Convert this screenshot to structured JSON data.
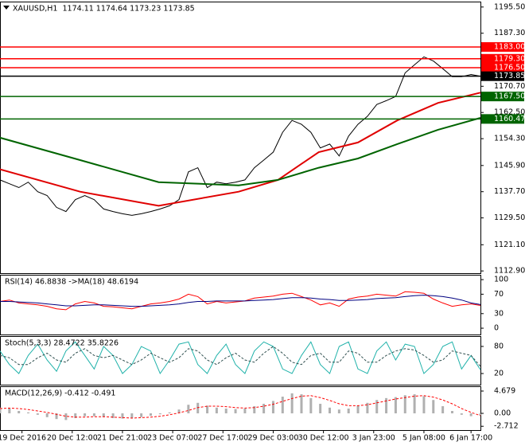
{
  "chart_data": [
    {
      "type": "line",
      "title": "XAUUSD,H1  1174.11 1174.64 1173.23 1173.85",
      "ylim": [
        1112.2,
        1197.2
      ],
      "xlim": [
        0,
        306
      ],
      "yticks": [
        {
          "value": 1195.5,
          "label": "1195.50"
        },
        {
          "value": 1187.3,
          "label": "1187.30"
        },
        {
          "value": 1170.7,
          "label": "1170.70"
        },
        {
          "value": 1162.5,
          "label": "1162.50"
        },
        {
          "value": 1154.3,
          "label": "1154.30"
        },
        {
          "value": 1145.9,
          "label": "1145.90"
        },
        {
          "value": 1137.7,
          "label": "1137.70"
        },
        {
          "value": 1129.5,
          "label": "1129.50"
        },
        {
          "value": 1121.1,
          "label": "1121.10"
        },
        {
          "value": 1112.9,
          "label": "1112.90"
        }
      ],
      "xticks": [
        {
          "value": 14,
          "label": "19 Dec 2016"
        },
        {
          "value": 46,
          "label": "20 Dec 12:00"
        },
        {
          "value": 78,
          "label": "21 Dec 21:00"
        },
        {
          "value": 110,
          "label": "23 Dec 07:00"
        },
        {
          "value": 142,
          "label": "27 Dec 17:00"
        },
        {
          "value": 174,
          "label": "29 Dec 03:00"
        },
        {
          "value": 206,
          "label": "30 Dec 12:00"
        },
        {
          "value": 238,
          "label": "3 Jan 23:00"
        },
        {
          "value": 270,
          "label": "5 Jan 08:00"
        },
        {
          "value": 300,
          "label": "6 Jan 17:00"
        }
      ],
      "levels": [
        {
          "value": 1183.0,
          "label": "1183.00",
          "color": "#ff0000"
        },
        {
          "value": 1179.3,
          "label": "1179.30",
          "color": "#ff0000"
        },
        {
          "value": 1176.5,
          "label": "1176.50",
          "color": "#ff0000"
        },
        {
          "value": 1173.85,
          "label": "1173.85",
          "color": "#000000"
        },
        {
          "value": 1167.5,
          "label": "1167.50",
          "color": "#006400"
        },
        {
          "value": 1160.47,
          "label": "1160.47",
          "color": "#006400"
        }
      ],
      "x": [
        0,
        6,
        12,
        18,
        24,
        30,
        36,
        42,
        48,
        54,
        60,
        66,
        72,
        78,
        84,
        90,
        96,
        102,
        108,
        114,
        120,
        126,
        132,
        138,
        144,
        150,
        156,
        162,
        168,
        174,
        180,
        186,
        192,
        198,
        204,
        210,
        216,
        222,
        228,
        234,
        240,
        246,
        252,
        258,
        264,
        270,
        276,
        282,
        288,
        294,
        300,
        306
      ],
      "series": [
        {
          "color": "#000000",
          "values": [
            1141.4,
            1140.2,
            1139.0,
            1140.7,
            1137.7,
            1136.5,
            1132.8,
            1131.5,
            1135.2,
            1136.5,
            1135.2,
            1132.3,
            1131.5,
            1130.8,
            1130.3,
            1130.8,
            1131.5,
            1132.3,
            1133.3,
            1135.2,
            1143.9,
            1145.2,
            1139.0,
            1140.7,
            1140.2,
            1140.7,
            1141.4,
            1145.2,
            1147.6,
            1150.1,
            1156.3,
            1160.0,
            1158.8,
            1156.3,
            1151.4,
            1152.6,
            1148.9,
            1155.1,
            1158.8,
            1161.3,
            1165.0,
            1166.2,
            1167.5,
            1174.9,
            1177.4,
            1179.9,
            1178.6,
            1176.2,
            1173.7,
            1173.7,
            1174.4,
            1173.85
          ]
        },
        {
          "color": "#e00000",
          "x": [
            0,
            51,
            101,
            152,
            177,
            203,
            228,
            253,
            279,
            306
          ],
          "values": [
            1144.7,
            1137.7,
            1133.3,
            1137.7,
            1141.4,
            1150.1,
            1153.1,
            1160.0,
            1165.5,
            1168.7
          ]
        },
        {
          "color": "#006400",
          "x": [
            0,
            51,
            101,
            152,
            177,
            203,
            228,
            253,
            279,
            306
          ],
          "values": [
            1154.6,
            1147.6,
            1140.7,
            1139.7,
            1141.4,
            1145.2,
            1148.1,
            1152.6,
            1157.1,
            1160.8
          ]
        }
      ]
    },
    {
      "type": "line",
      "title": "RSI(14) 46.8838 ->MA(18) 48.6194",
      "ylim": [
        -13,
        110
      ],
      "xlim": [
        0,
        306
      ],
      "yticks": [
        100,
        70,
        30,
        0
      ],
      "x": [
        0,
        6,
        12,
        18,
        24,
        30,
        36,
        42,
        48,
        54,
        60,
        66,
        72,
        78,
        84,
        90,
        96,
        102,
        108,
        114,
        120,
        126,
        132,
        138,
        144,
        150,
        156,
        162,
        168,
        174,
        180,
        186,
        192,
        198,
        204,
        210,
        216,
        222,
        228,
        234,
        240,
        246,
        252,
        258,
        264,
        270,
        276,
        282,
        288,
        294,
        300,
        306
      ],
      "series": [
        {
          "color": "#ff0000",
          "values": [
            55,
            58,
            52,
            50,
            48,
            45,
            40,
            38,
            50,
            55,
            52,
            45,
            44,
            42,
            40,
            45,
            50,
            52,
            55,
            60,
            70,
            65,
            50,
            55,
            52,
            54,
            56,
            62,
            64,
            66,
            70,
            72,
            65,
            58,
            48,
            52,
            45,
            60,
            64,
            66,
            70,
            68,
            66,
            75,
            74,
            72,
            60,
            52,
            45,
            48,
            50,
            46.8838
          ]
        },
        {
          "color": "#000080",
          "values": [
            55,
            55,
            54,
            53,
            52,
            50,
            48,
            46,
            46,
            47,
            48,
            48,
            47,
            46,
            45,
            45,
            46,
            47,
            48,
            50,
            53,
            55,
            55,
            56,
            56,
            56,
            56,
            57,
            58,
            59,
            61,
            63,
            63,
            62,
            60,
            59,
            57,
            57,
            58,
            59,
            61,
            62,
            63,
            65,
            67,
            68,
            67,
            65,
            62,
            58,
            52,
            48.6194
          ]
        }
      ]
    },
    {
      "type": "line",
      "title": "Stoch(5,3,3) 28.4722 35.8226",
      "ylim": [
        -4.7,
        102.9
      ],
      "xlim": [
        0,
        306
      ],
      "yticks": [
        80,
        20
      ],
      "x": [
        0,
        6,
        12,
        18,
        24,
        30,
        36,
        42,
        48,
        54,
        60,
        66,
        72,
        78,
        84,
        90,
        96,
        102,
        108,
        114,
        120,
        126,
        132,
        138,
        144,
        150,
        156,
        162,
        168,
        174,
        180,
        186,
        192,
        198,
        204,
        210,
        216,
        222,
        228,
        234,
        240,
        246,
        252,
        258,
        264,
        270,
        276,
        282,
        288,
        294,
        300,
        306
      ],
      "series": [
        {
          "color": "#20b2aa",
          "values": [
            70,
            40,
            20,
            60,
            85,
            50,
            25,
            70,
            90,
            60,
            30,
            80,
            60,
            20,
            40,
            80,
            70,
            20,
            50,
            85,
            90,
            40,
            20,
            60,
            85,
            40,
            20,
            70,
            90,
            80,
            30,
            20,
            60,
            90,
            40,
            20,
            80,
            90,
            30,
            20,
            70,
            90,
            50,
            85,
            80,
            20,
            40,
            80,
            90,
            30,
            60,
            28.4722
          ]
        },
        {
          "color": "#2f4f4f",
          "dash": true,
          "values": [
            60,
            55,
            40,
            40,
            55,
            65,
            50,
            45,
            65,
            75,
            60,
            55,
            60,
            50,
            40,
            50,
            65,
            55,
            45,
            55,
            75,
            70,
            50,
            40,
            55,
            65,
            50,
            45,
            65,
            80,
            65,
            45,
            40,
            60,
            65,
            45,
            45,
            70,
            65,
            45,
            45,
            60,
            70,
            75,
            72,
            60,
            45,
            50,
            70,
            65,
            60,
            35.8226
          ]
        }
      ]
    },
    {
      "type": "bar",
      "title": "MACD(12,26,9) -0.412 -0.491",
      "ylim": [
        -3.51,
        5.68
      ],
      "xlim": [
        0,
        306
      ],
      "yticks": [
        4.679,
        {
          "value": 0,
          "label": "0.00"
        },
        -2.712
      ],
      "x": [
        0,
        6,
        12,
        18,
        24,
        30,
        36,
        42,
        48,
        54,
        60,
        66,
        72,
        78,
        84,
        90,
        96,
        102,
        108,
        114,
        120,
        126,
        132,
        138,
        144,
        150,
        156,
        162,
        168,
        174,
        180,
        186,
        192,
        198,
        204,
        210,
        216,
        222,
        228,
        234,
        240,
        246,
        252,
        258,
        264,
        270,
        276,
        282,
        288,
        294,
        300,
        306
      ],
      "series": [
        {
          "color": "#b0b0b0",
          "values": [
            1.2,
            1.0,
            0.5,
            0.2,
            -0.3,
            -0.8,
            -1.2,
            -1.4,
            -1.0,
            -0.6,
            -0.6,
            -0.8,
            -1.0,
            -1.1,
            -1.0,
            -0.8,
            -0.5,
            -0.2,
            0.2,
            0.8,
            1.8,
            2.2,
            1.6,
            1.2,
            1.0,
            0.9,
            1.0,
            1.5,
            2.0,
            2.6,
            3.5,
            4.2,
            4.0,
            3.2,
            2.0,
            1.2,
            0.8,
            1.0,
            1.6,
            2.2,
            2.8,
            3.2,
            3.4,
            3.8,
            4.0,
            3.6,
            2.8,
            1.5,
            0.5,
            -0.3,
            -0.6,
            -0.412
          ]
        },
        {
          "type": "line",
          "color": "#ff0000",
          "dash": true,
          "values": [
            1.0,
            1.1,
            1.0,
            0.8,
            0.5,
            0.2,
            -0.2,
            -0.6,
            -0.8,
            -0.8,
            -0.7,
            -0.7,
            -0.8,
            -0.9,
            -1.0,
            -0.9,
            -0.8,
            -0.6,
            -0.3,
            0.1,
            0.6,
            1.2,
            1.5,
            1.5,
            1.4,
            1.2,
            1.1,
            1.2,
            1.5,
            1.9,
            2.5,
            3.1,
            3.6,
            3.7,
            3.3,
            2.7,
            2.0,
            1.6,
            1.6,
            1.8,
            2.2,
            2.6,
            3.0,
            3.3,
            3.6,
            3.7,
            3.4,
            2.8,
            2.0,
            1.0,
            0.2,
            -0.491
          ]
        }
      ]
    }
  ]
}
